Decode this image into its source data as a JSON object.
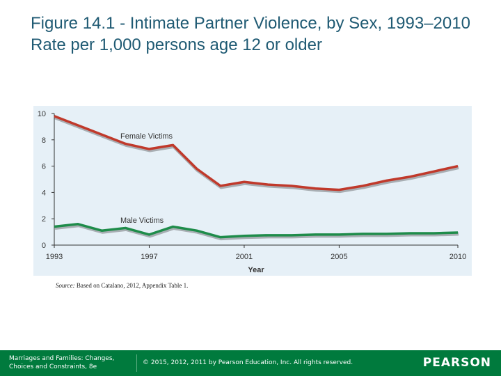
{
  "slide": {
    "title": "Figure 14.1 - Intimate Partner Violence, by Sex, 1993–2010 Rate per 1,000 persons age 12 or older"
  },
  "source": {
    "label": "Source:",
    "text": " Based on Catalano, 2012, Appendix Table 1."
  },
  "footer": {
    "book_line1": "Marriages and Families: Changes,",
    "book_line2": "Choices and Constraints, 8e",
    "copyright": "© 2015, 2012, 2011 by Pearson Education, Inc. All rights reserved.",
    "logo": "PEARSON"
  },
  "colors": {
    "female": "#c0392b",
    "male": "#1e8c4a",
    "panel": "#e6f0f7",
    "footer": "#007a3d"
  },
  "chart_data": {
    "type": "line",
    "xlabel": "Year",
    "ylabel": "",
    "xlim": [
      1993,
      2010
    ],
    "ylim": [
      0,
      10
    ],
    "x_ticks": [
      "1993",
      "1997",
      "2001",
      "2005",
      "2010"
    ],
    "y_ticks": [
      "0",
      "2",
      "4",
      "6",
      "8",
      "10"
    ],
    "grid": false,
    "series": [
      {
        "name": "Female Victims",
        "x": [
          1993,
          1994,
          1995,
          1996,
          1997,
          1998,
          1999,
          2000,
          2001,
          2002,
          2003,
          2004,
          2005,
          2006,
          2007,
          2008,
          2009,
          2010
        ],
        "values": [
          9.8,
          9.1,
          8.4,
          7.7,
          7.3,
          7.6,
          5.8,
          4.5,
          4.8,
          4.6,
          4.5,
          4.3,
          4.2,
          4.5,
          4.9,
          5.2,
          5.6,
          6.0
        ]
      },
      {
        "name": "Male Victims",
        "x": [
          1993,
          1994,
          1995,
          1996,
          1997,
          1998,
          1999,
          2000,
          2001,
          2002,
          2003,
          2004,
          2005,
          2006,
          2007,
          2008,
          2009,
          2010
        ],
        "values": [
          1.4,
          1.6,
          1.1,
          1.3,
          0.8,
          1.4,
          1.1,
          0.6,
          0.7,
          0.75,
          0.75,
          0.8,
          0.8,
          0.85,
          0.85,
          0.9,
          0.9,
          0.95
        ]
      }
    ]
  }
}
